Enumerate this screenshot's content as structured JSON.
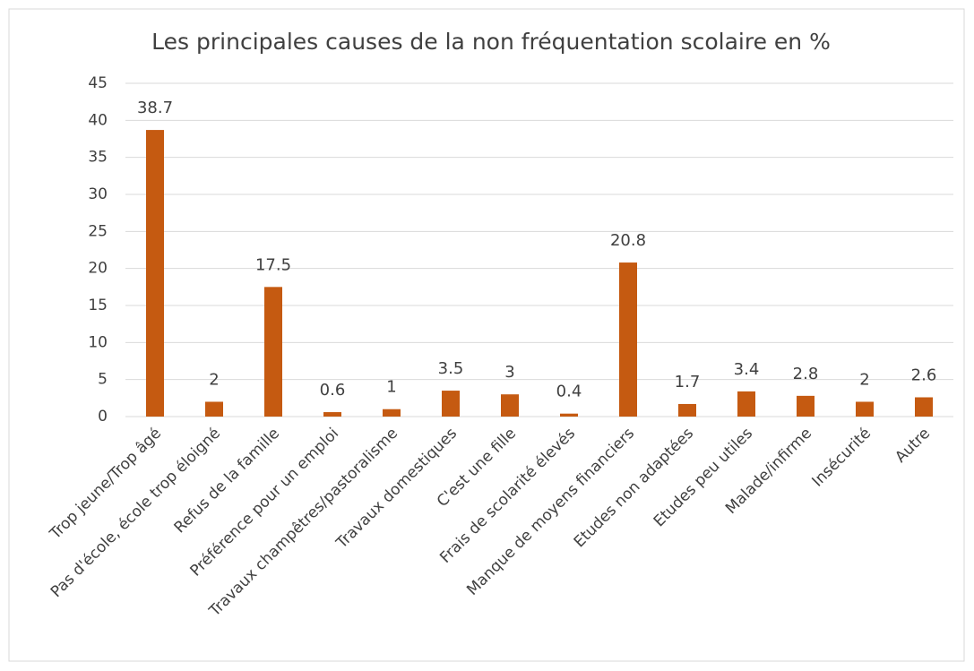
{
  "chart_data": {
    "type": "bar",
    "title": "Les principales causes de la non fréquentation scolaire en %",
    "categories": [
      "Trop jeune/Trop âgé",
      "Pas d'école, école trop éloigné",
      "Refus de la famille",
      "Préférence pour un emploi",
      "Travaux champêtres/pastoralisme",
      "Travaux domestiques",
      "C'est une fille",
      "Frais de scolarité élevés",
      "Manque de moyens financiers",
      "Etudes non adaptées",
      "Etudes peu utiles",
      "Malade/infirme",
      "Insécurité",
      "Autre"
    ],
    "values": [
      38.7,
      2,
      17.5,
      0.6,
      1,
      3.5,
      3,
      0.4,
      20.8,
      1.7,
      3.4,
      2.8,
      2,
      2.6
    ],
    "color": "#c55a11",
    "ylim": [
      0,
      45
    ],
    "yticks": [
      0,
      5,
      10,
      15,
      20,
      25,
      30,
      35,
      40,
      45
    ],
    "grid": true
  }
}
